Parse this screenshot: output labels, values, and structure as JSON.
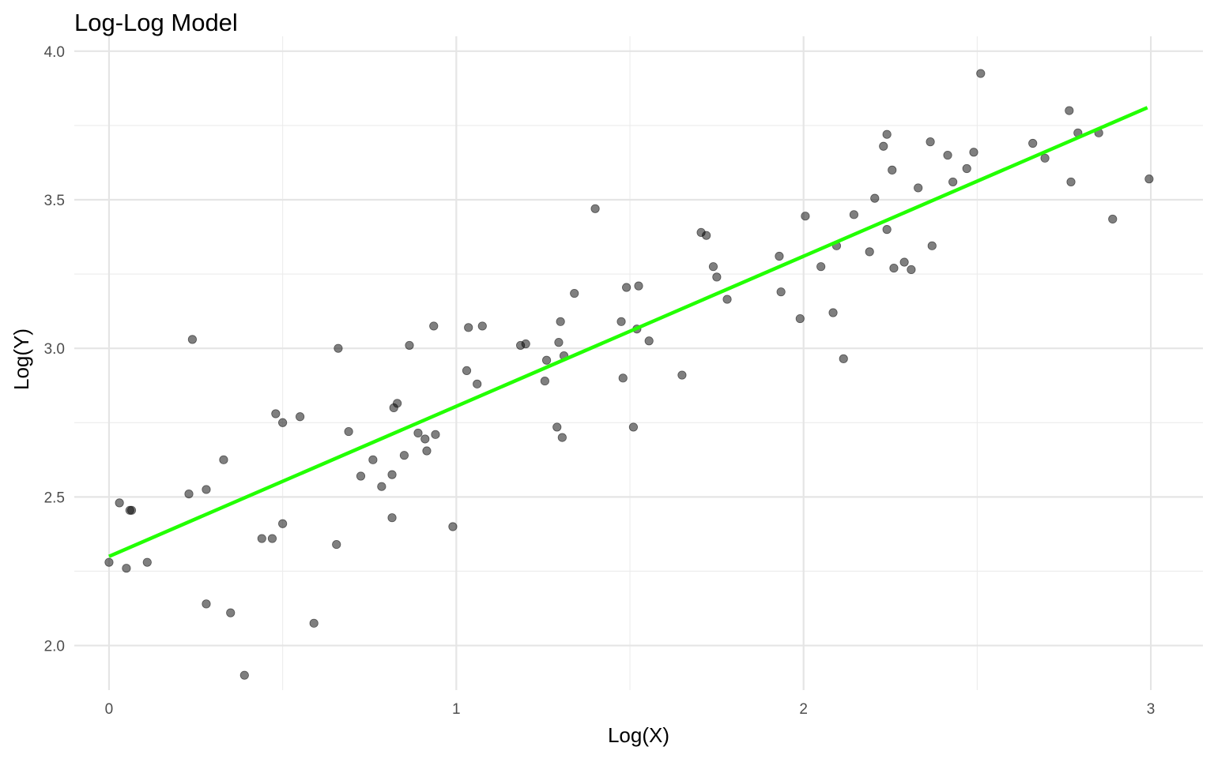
{
  "chart_data": {
    "type": "scatter",
    "title": "Log-Log Model",
    "xlabel": "Log(X)",
    "ylabel": "Log(Y)",
    "xlim": [
      -0.1,
      3.15
    ],
    "ylim": [
      1.85,
      4.05
    ],
    "x_ticks": [
      0,
      1,
      2,
      3
    ],
    "x_tick_labels": [
      "0",
      "1",
      "2",
      "3"
    ],
    "x_minor_ticks": [
      0.5,
      1.5,
      2.5
    ],
    "y_ticks": [
      2.0,
      2.5,
      3.0,
      3.5,
      4.0
    ],
    "y_tick_labels": [
      "2.0",
      "2.5",
      "3.0",
      "3.5",
      "4.0"
    ],
    "y_minor_ticks": [
      2.25,
      2.75,
      3.25,
      3.75
    ],
    "grid": true,
    "legend": "none",
    "point_color": "#000000",
    "point_opacity": 0.5,
    "fit_line": {
      "color": "#22ff00",
      "x": [
        0,
        2.99
      ],
      "y": [
        2.3,
        3.81
      ]
    },
    "points": [
      [
        0.0,
        2.28
      ],
      [
        0.03,
        2.48
      ],
      [
        0.05,
        2.26
      ],
      [
        0.06,
        2.455
      ],
      [
        0.065,
        2.455
      ],
      [
        0.11,
        2.28
      ],
      [
        0.23,
        2.51
      ],
      [
        0.24,
        3.03
      ],
      [
        0.28,
        2.14
      ],
      [
        0.28,
        2.525
      ],
      [
        0.33,
        2.625
      ],
      [
        0.35,
        2.11
      ],
      [
        0.39,
        1.9
      ],
      [
        0.44,
        2.36
      ],
      [
        0.47,
        2.36
      ],
      [
        0.48,
        2.78
      ],
      [
        0.5,
        2.75
      ],
      [
        0.5,
        2.41
      ],
      [
        0.55,
        2.77
      ],
      [
        0.59,
        2.075
      ],
      [
        0.655,
        2.34
      ],
      [
        0.66,
        3.0
      ],
      [
        0.69,
        2.72
      ],
      [
        0.725,
        2.57
      ],
      [
        0.76,
        2.625
      ],
      [
        0.785,
        2.535
      ],
      [
        0.815,
        2.575
      ],
      [
        0.815,
        2.43
      ],
      [
        0.82,
        2.8
      ],
      [
        0.83,
        2.815
      ],
      [
        0.85,
        2.64
      ],
      [
        0.865,
        3.01
      ],
      [
        0.89,
        2.715
      ],
      [
        0.91,
        2.695
      ],
      [
        0.915,
        2.655
      ],
      [
        0.935,
        3.075
      ],
      [
        0.94,
        2.71
      ],
      [
        0.99,
        2.4
      ],
      [
        1.03,
        2.925
      ],
      [
        1.035,
        3.07
      ],
      [
        1.06,
        2.88
      ],
      [
        1.075,
        3.075
      ],
      [
        1.185,
        3.01
      ],
      [
        1.2,
        3.015
      ],
      [
        1.255,
        2.89
      ],
      [
        1.26,
        2.96
      ],
      [
        1.29,
        2.735
      ],
      [
        1.295,
        3.02
      ],
      [
        1.3,
        3.09
      ],
      [
        1.305,
        2.7
      ],
      [
        1.31,
        2.975
      ],
      [
        1.34,
        3.185
      ],
      [
        1.4,
        3.47
      ],
      [
        1.475,
        3.09
      ],
      [
        1.48,
        2.9
      ],
      [
        1.49,
        3.205
      ],
      [
        1.51,
        2.735
      ],
      [
        1.52,
        3.065
      ],
      [
        1.525,
        3.21
      ],
      [
        1.555,
        3.025
      ],
      [
        1.65,
        2.91
      ],
      [
        1.705,
        3.39
      ],
      [
        1.72,
        3.38
      ],
      [
        1.74,
        3.275
      ],
      [
        1.75,
        3.24
      ],
      [
        1.78,
        3.165
      ],
      [
        1.93,
        3.31
      ],
      [
        1.935,
        3.19
      ],
      [
        1.99,
        3.1
      ],
      [
        2.005,
        3.445
      ],
      [
        2.05,
        3.275
      ],
      [
        2.085,
        3.12
      ],
      [
        2.095,
        3.345
      ],
      [
        2.115,
        2.965
      ],
      [
        2.145,
        3.45
      ],
      [
        2.19,
        3.325
      ],
      [
        2.205,
        3.505
      ],
      [
        2.23,
        3.68
      ],
      [
        2.24,
        3.72
      ],
      [
        2.24,
        3.4
      ],
      [
        2.255,
        3.6
      ],
      [
        2.26,
        3.27
      ],
      [
        2.29,
        3.29
      ],
      [
        2.31,
        3.265
      ],
      [
        2.33,
        3.54
      ],
      [
        2.365,
        3.695
      ],
      [
        2.37,
        3.345
      ],
      [
        2.415,
        3.65
      ],
      [
        2.43,
        3.56
      ],
      [
        2.47,
        3.605
      ],
      [
        2.49,
        3.66
      ],
      [
        2.51,
        3.925
      ],
      [
        2.66,
        3.69
      ],
      [
        2.695,
        3.64
      ],
      [
        2.765,
        3.8
      ],
      [
        2.77,
        3.56
      ],
      [
        2.79,
        3.725
      ],
      [
        2.85,
        3.725
      ],
      [
        2.89,
        3.435
      ],
      [
        2.995,
        3.57
      ]
    ]
  }
}
